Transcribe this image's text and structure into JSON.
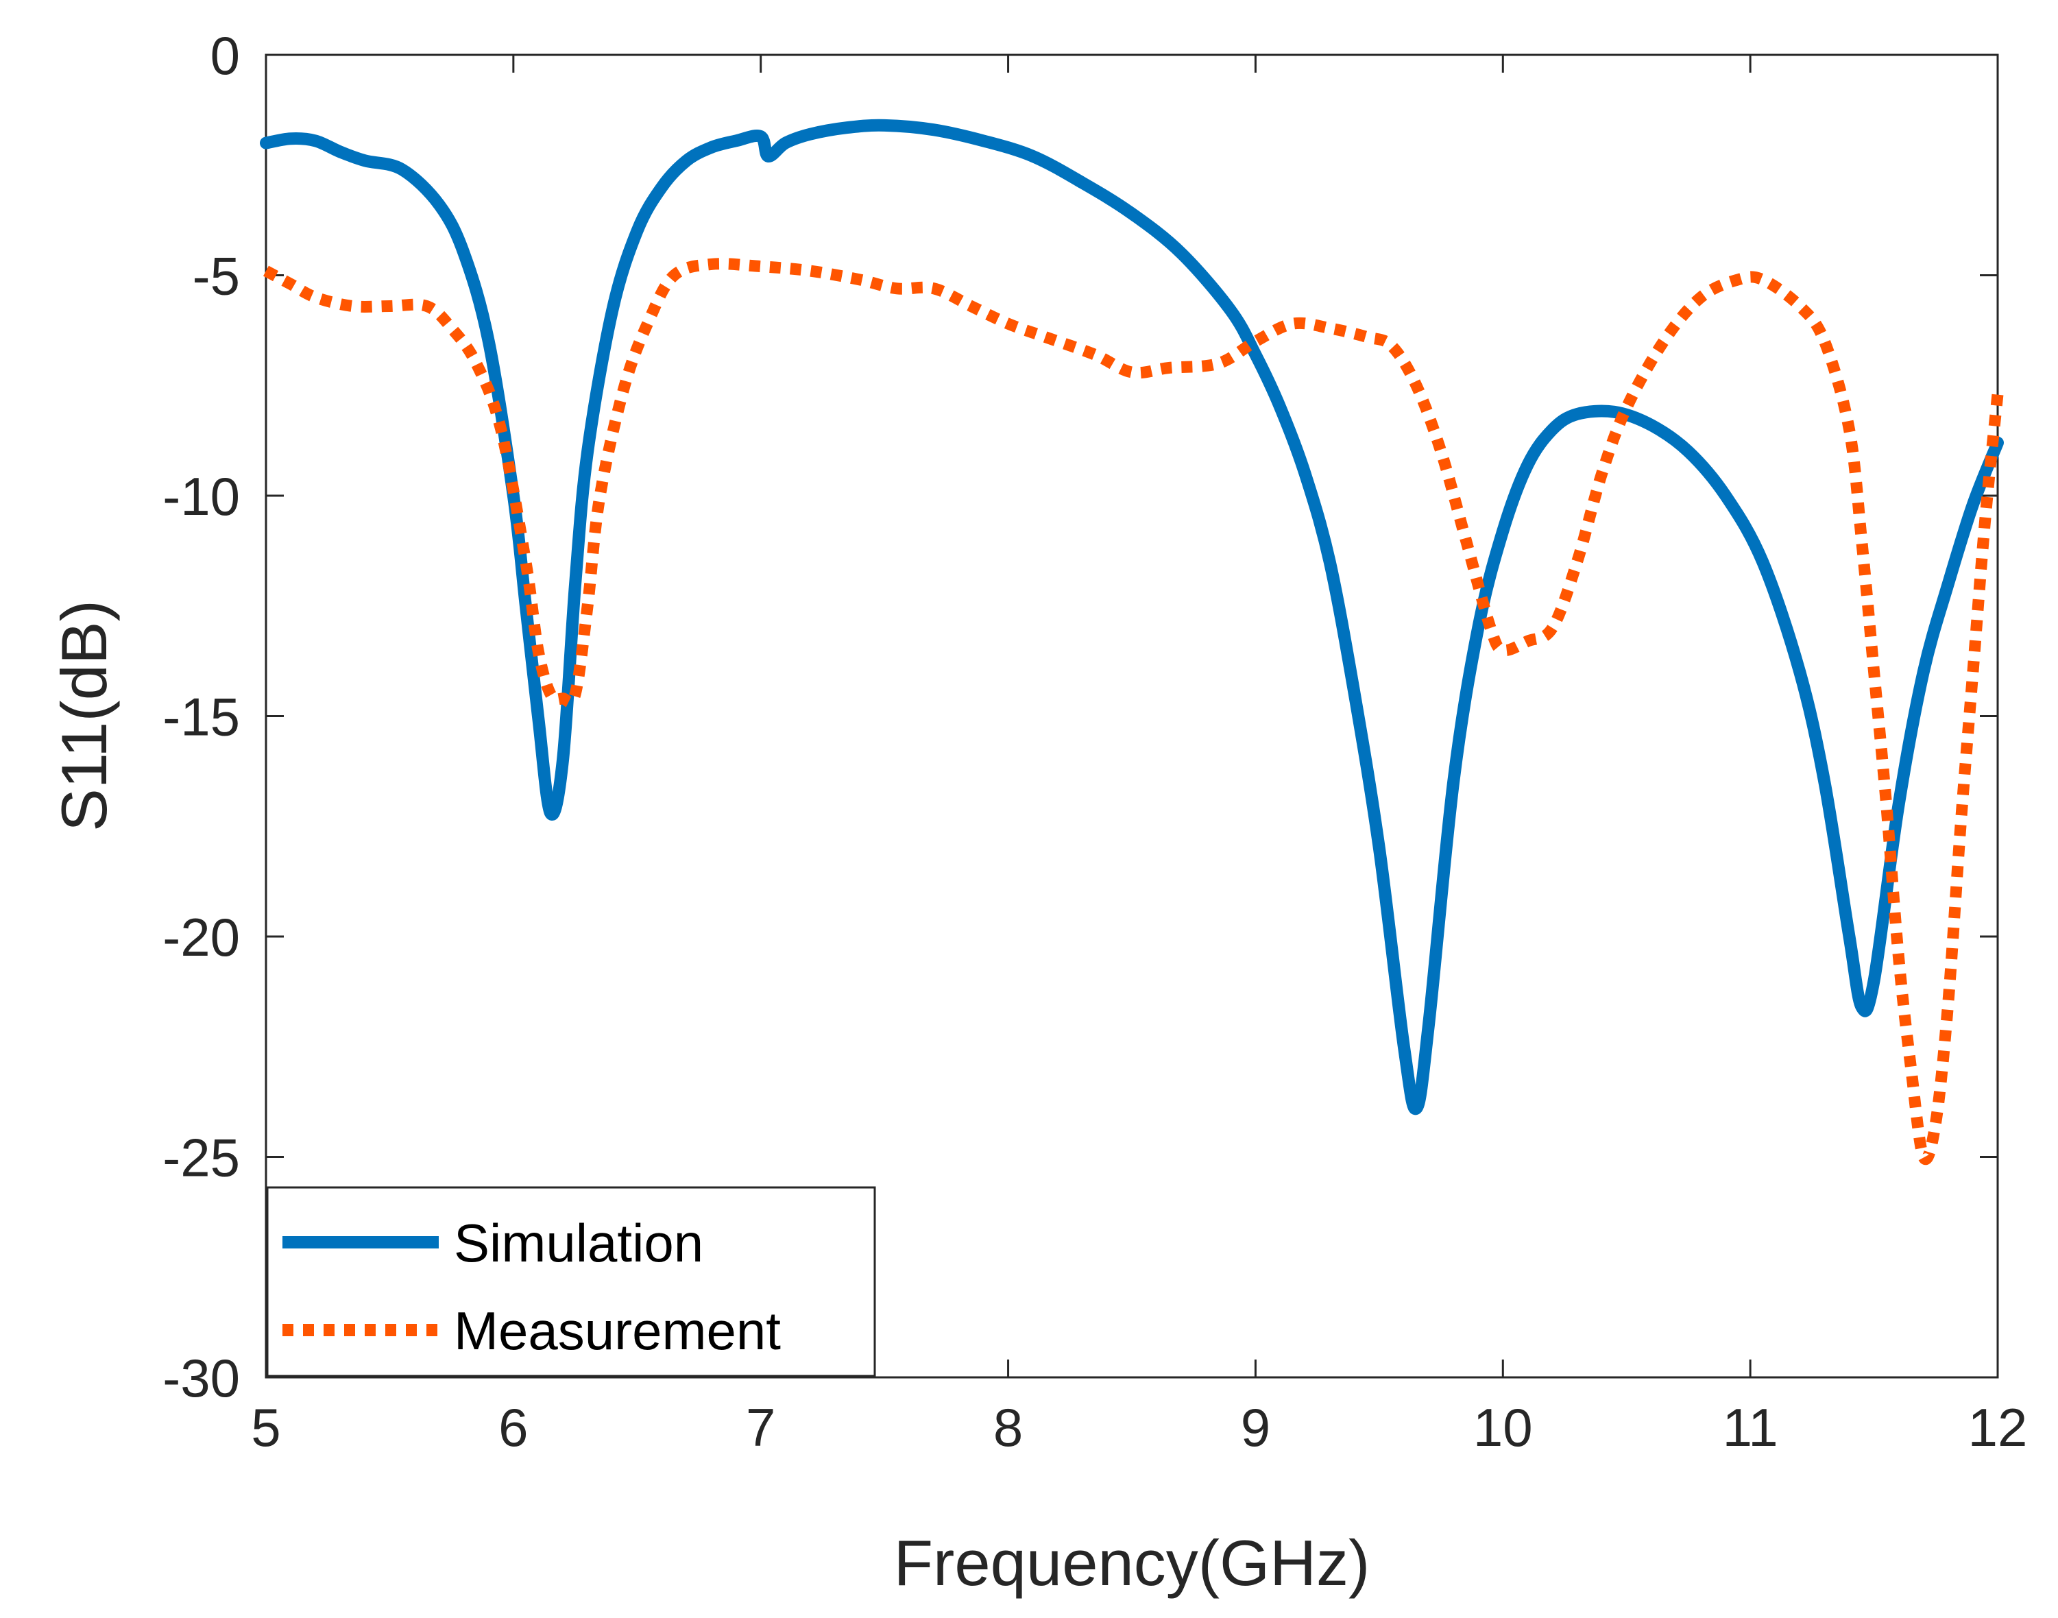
{
  "chart_data": {
    "type": "line",
    "title": "",
    "xlabel": "Frequency(GHz)",
    "ylabel": "S11(dB)",
    "xlim": [
      5,
      12
    ],
    "ylim": [
      -30,
      0
    ],
    "xticks": [
      5,
      6,
      7,
      8,
      9,
      10,
      11,
      12
    ],
    "yticks": [
      0,
      -5,
      -10,
      -15,
      -20,
      -25,
      -30
    ],
    "xtick_labels": [
      "5",
      "6",
      "7",
      "8",
      "9",
      "10",
      "11",
      "12"
    ],
    "ytick_labels": [
      "0",
      "-5",
      "-10",
      "-15",
      "-20",
      "-25",
      "-30"
    ],
    "grid": false,
    "legend_position": "bottom-left",
    "series": [
      {
        "name": "Simulation",
        "style": "solid",
        "color": "#0072BD",
        "points": [
          [
            5.0,
            -2.0
          ],
          [
            5.1,
            -1.9
          ],
          [
            5.2,
            -1.95
          ],
          [
            5.3,
            -2.2
          ],
          [
            5.4,
            -2.4
          ],
          [
            5.55,
            -2.6
          ],
          [
            5.7,
            -3.4
          ],
          [
            5.8,
            -4.5
          ],
          [
            5.9,
            -6.5
          ],
          [
            6.0,
            -10.0
          ],
          [
            6.05,
            -12.5
          ],
          [
            6.1,
            -15.0
          ],
          [
            6.15,
            -17.2
          ],
          [
            6.2,
            -16.0
          ],
          [
            6.25,
            -12.0
          ],
          [
            6.3,
            -9.0
          ],
          [
            6.4,
            -5.8
          ],
          [
            6.5,
            -4.0
          ],
          [
            6.6,
            -3.0
          ],
          [
            6.7,
            -2.4
          ],
          [
            6.8,
            -2.1
          ],
          [
            6.9,
            -1.95
          ],
          [
            7.0,
            -1.85
          ],
          [
            7.03,
            -2.3
          ],
          [
            7.1,
            -2.0
          ],
          [
            7.2,
            -1.8
          ],
          [
            7.35,
            -1.65
          ],
          [
            7.5,
            -1.6
          ],
          [
            7.7,
            -1.7
          ],
          [
            7.9,
            -1.95
          ],
          [
            8.1,
            -2.3
          ],
          [
            8.3,
            -2.9
          ],
          [
            8.5,
            -3.6
          ],
          [
            8.7,
            -4.5
          ],
          [
            8.9,
            -5.8
          ],
          [
            9.0,
            -6.8
          ],
          [
            9.1,
            -8.0
          ],
          [
            9.2,
            -9.5
          ],
          [
            9.3,
            -11.5
          ],
          [
            9.4,
            -14.5
          ],
          [
            9.5,
            -18.0
          ],
          [
            9.6,
            -22.5
          ],
          [
            9.65,
            -23.9
          ],
          [
            9.7,
            -22.0
          ],
          [
            9.8,
            -16.5
          ],
          [
            9.9,
            -13.0
          ],
          [
            10.0,
            -10.8
          ],
          [
            10.1,
            -9.3
          ],
          [
            10.2,
            -8.5
          ],
          [
            10.3,
            -8.15
          ],
          [
            10.45,
            -8.1
          ],
          [
            10.6,
            -8.4
          ],
          [
            10.75,
            -9.0
          ],
          [
            10.9,
            -10.0
          ],
          [
            11.05,
            -11.5
          ],
          [
            11.2,
            -14.0
          ],
          [
            11.3,
            -16.5
          ],
          [
            11.4,
            -20.0
          ],
          [
            11.45,
            -21.6
          ],
          [
            11.5,
            -21.0
          ],
          [
            11.6,
            -17.0
          ],
          [
            11.7,
            -14.0
          ],
          [
            11.8,
            -12.0
          ],
          [
            11.9,
            -10.2
          ],
          [
            12.0,
            -8.8
          ]
        ]
      },
      {
        "name": "Measurement",
        "style": "dotted",
        "color": "#FF5500",
        "points": [
          [
            5.0,
            -4.9
          ],
          [
            5.1,
            -5.2
          ],
          [
            5.2,
            -5.5
          ],
          [
            5.35,
            -5.7
          ],
          [
            5.5,
            -5.7
          ],
          [
            5.65,
            -5.7
          ],
          [
            5.75,
            -6.2
          ],
          [
            5.85,
            -7.0
          ],
          [
            5.95,
            -8.5
          ],
          [
            6.05,
            -11.5
          ],
          [
            6.1,
            -13.5
          ],
          [
            6.15,
            -14.5
          ],
          [
            6.2,
            -14.6
          ],
          [
            6.25,
            -14.5
          ],
          [
            6.3,
            -12.5
          ],
          [
            6.35,
            -10.0
          ],
          [
            6.45,
            -7.5
          ],
          [
            6.55,
            -6.0
          ],
          [
            6.65,
            -5.0
          ],
          [
            6.8,
            -4.75
          ],
          [
            7.0,
            -4.8
          ],
          [
            7.2,
            -4.9
          ],
          [
            7.4,
            -5.1
          ],
          [
            7.55,
            -5.3
          ],
          [
            7.7,
            -5.3
          ],
          [
            7.85,
            -5.7
          ],
          [
            8.0,
            -6.1
          ],
          [
            8.15,
            -6.4
          ],
          [
            8.35,
            -6.8
          ],
          [
            8.5,
            -7.2
          ],
          [
            8.65,
            -7.1
          ],
          [
            8.85,
            -7.0
          ],
          [
            9.0,
            -6.5
          ],
          [
            9.15,
            -6.1
          ],
          [
            9.3,
            -6.2
          ],
          [
            9.45,
            -6.4
          ],
          [
            9.55,
            -6.6
          ],
          [
            9.65,
            -7.5
          ],
          [
            9.75,
            -9.0
          ],
          [
            9.85,
            -11.0
          ],
          [
            9.95,
            -13.0
          ],
          [
            10.0,
            -13.5
          ],
          [
            10.1,
            -13.3
          ],
          [
            10.2,
            -13.0
          ],
          [
            10.3,
            -11.5
          ],
          [
            10.4,
            -9.5
          ],
          [
            10.5,
            -8.0
          ],
          [
            10.65,
            -6.5
          ],
          [
            10.8,
            -5.5
          ],
          [
            10.95,
            -5.1
          ],
          [
            11.05,
            -5.1
          ],
          [
            11.2,
            -5.7
          ],
          [
            11.3,
            -6.5
          ],
          [
            11.4,
            -8.5
          ],
          [
            11.45,
            -11.0
          ],
          [
            11.5,
            -14.0
          ],
          [
            11.55,
            -17.0
          ],
          [
            11.6,
            -20.5
          ],
          [
            11.65,
            -23.0
          ],
          [
            11.7,
            -25.0
          ],
          [
            11.75,
            -24.2
          ],
          [
            11.8,
            -21.5
          ],
          [
            11.85,
            -17.5
          ],
          [
            11.9,
            -14.0
          ],
          [
            11.95,
            -10.5
          ],
          [
            12.0,
            -7.7
          ]
        ]
      }
    ]
  }
}
